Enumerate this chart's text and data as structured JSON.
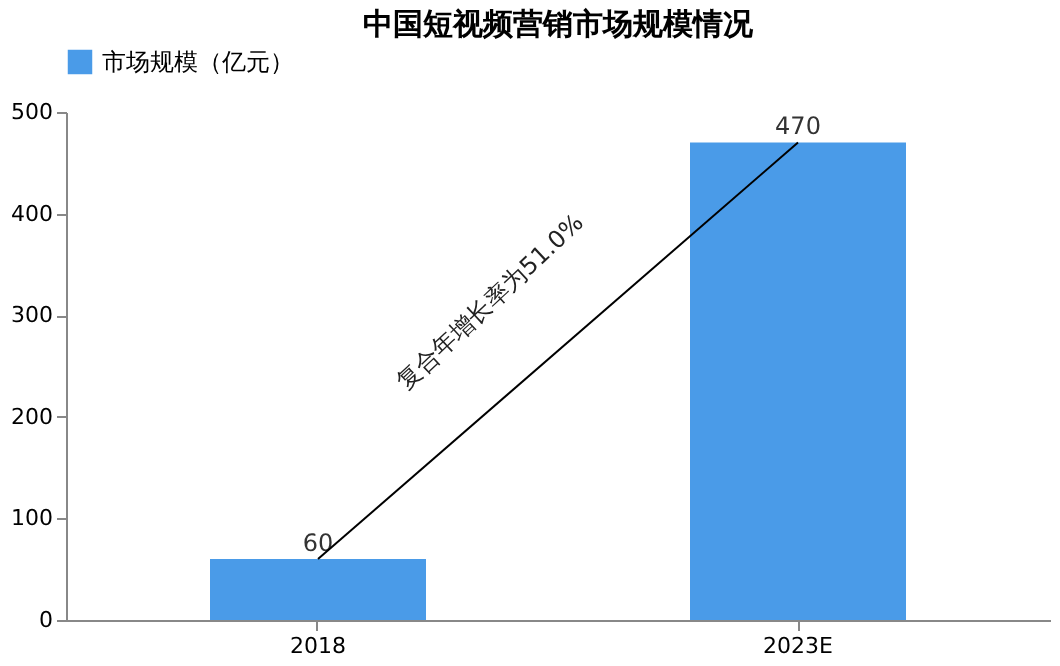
{
  "chart_data": {
    "type": "bar",
    "title": "中国短视频营销市场规模情况",
    "categories": [
      "2018",
      "2023E"
    ],
    "series": [
      {
        "name": "市场规模（亿元）",
        "color": "#4a9be8",
        "values": [
          60,
          470
        ],
        "value_labels": [
          "60",
          "470"
        ]
      },
      {
        "type": "line",
        "color": "#000000",
        "values": [
          60,
          470
        ]
      }
    ],
    "ylim": [
      0,
      500
    ],
    "yticks": [
      0,
      100,
      200,
      300,
      400,
      500
    ],
    "grid": false,
    "legend": "top",
    "annotations": [
      "复合年增长率为51.0%"
    ]
  }
}
